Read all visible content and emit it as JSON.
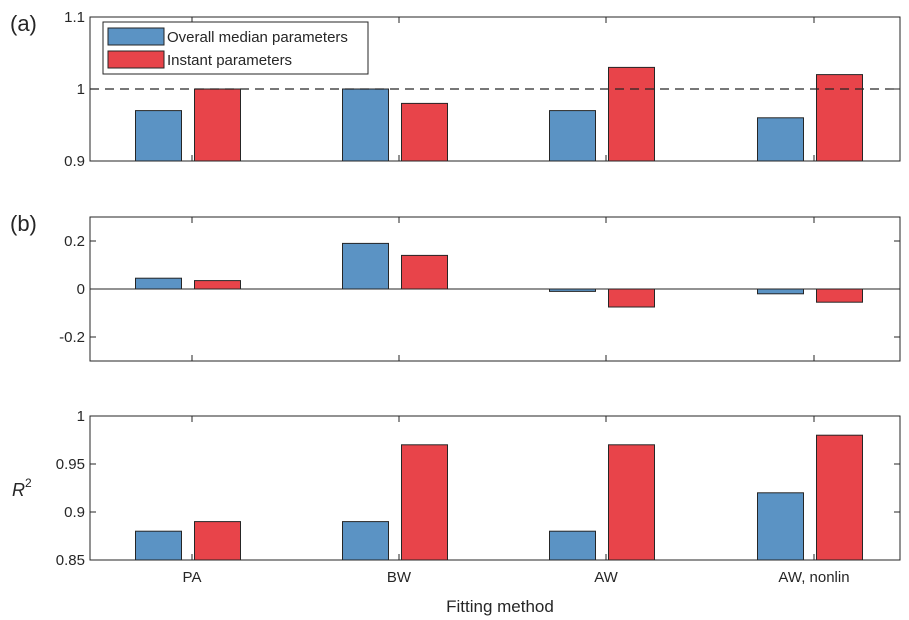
{
  "chart_data": [
    {
      "type": "bar",
      "panel_label": "(a)",
      "categories": [
        "PA",
        "BW",
        "AW",
        "AW, nonlin"
      ],
      "series": [
        {
          "name": "Overall median parameters",
          "color": "#5b93c4",
          "values": [
            0.97,
            1.0,
            0.97,
            0.96
          ]
        },
        {
          "name": "Instant parameters",
          "color": "#e8444a",
          "values": [
            1.0,
            0.98,
            1.03,
            1.02
          ]
        }
      ],
      "ylim": [
        0.9,
        1.1
      ],
      "yticks": [
        0.9,
        1,
        1.1
      ],
      "ytick_labels": [
        "0.9",
        "1",
        "1.1"
      ],
      "baseline": 0.9,
      "reference_line": 1,
      "ylabel": "",
      "legend": "top-left"
    },
    {
      "type": "bar",
      "panel_label": "(b)",
      "categories": [
        "PA",
        "BW",
        "AW",
        "AW, nonlin"
      ],
      "series": [
        {
          "name": "Overall median parameters",
          "color": "#5b93c4",
          "values": [
            0.045,
            0.19,
            -0.01,
            -0.02
          ]
        },
        {
          "name": "Instant parameters",
          "color": "#e8444a",
          "values": [
            0.035,
            0.14,
            -0.075,
            -0.055
          ]
        }
      ],
      "ylim": [
        -0.3,
        0.3
      ],
      "yticks": [
        -0.2,
        0,
        0.2
      ],
      "ytick_labels": [
        "-0.2",
        "0",
        "0.2"
      ],
      "baseline": 0,
      "zero_line": true,
      "ylabel": ""
    },
    {
      "type": "bar",
      "panel_label": "",
      "categories": [
        "PA",
        "BW",
        "AW",
        "AW, nonlin"
      ],
      "series": [
        {
          "name": "Overall median parameters",
          "color": "#5b93c4",
          "values": [
            0.88,
            0.89,
            0.88,
            0.92
          ]
        },
        {
          "name": "Instant parameters",
          "color": "#e8444a",
          "values": [
            0.89,
            0.97,
            0.97,
            0.98
          ]
        }
      ],
      "ylim": [
        0.85,
        1
      ],
      "yticks": [
        0.85,
        0.9,
        0.95,
        1
      ],
      "ytick_labels": [
        "0.85",
        "0.9",
        "0.95",
        "1"
      ],
      "baseline": 0.85,
      "ylabel": "R",
      "ylabel_superscript": "2",
      "xlabel": "Fitting method"
    }
  ]
}
